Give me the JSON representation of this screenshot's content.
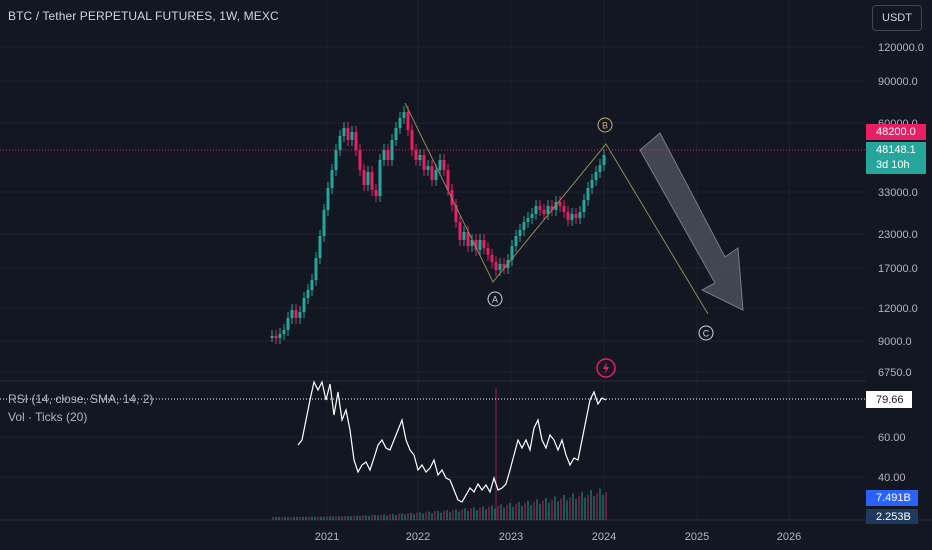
{
  "header": {
    "title": "BTC / Tether PERPETUAL FUTURES, 1W, MEXC",
    "currency": "USDT"
  },
  "price_axis": {
    "ticks": [
      "120000.0",
      "90000.0",
      "60000.0",
      "33000.0",
      "23000.0",
      "17000.0",
      "12000.0",
      "9000.0",
      "6750.0"
    ]
  },
  "rsi_axis": {
    "ticks": [
      "60.00",
      "40.00"
    ]
  },
  "time_axis": {
    "ticks": [
      "2021",
      "2022",
      "2023",
      "2024",
      "2025",
      "2026"
    ]
  },
  "tags": {
    "alert_price": "48200.0",
    "last_price": "48148.1",
    "countdown": "3d 10h",
    "rsi_value": "79.66",
    "vol_value_1": "7.491B",
    "vol_value_2": "2.253B"
  },
  "indicators": {
    "rsi_label": "RSI (14, close, SMA, 14, 2)",
    "vol_label": "Vol · Ticks (20)"
  },
  "wave_labels": [
    "A",
    "B",
    "C"
  ],
  "colors": {
    "background": "#131722",
    "up": "#26a69a",
    "down": "#e91e63",
    "pink_tag": "#e91e63",
    "green_tag": "#26a69a",
    "wave_line": "#8e8a5a",
    "rsi_line": "#ffffff"
  },
  "icons": {
    "alert": "lightning-icon",
    "arrow": "down-arrow-projection"
  }
}
